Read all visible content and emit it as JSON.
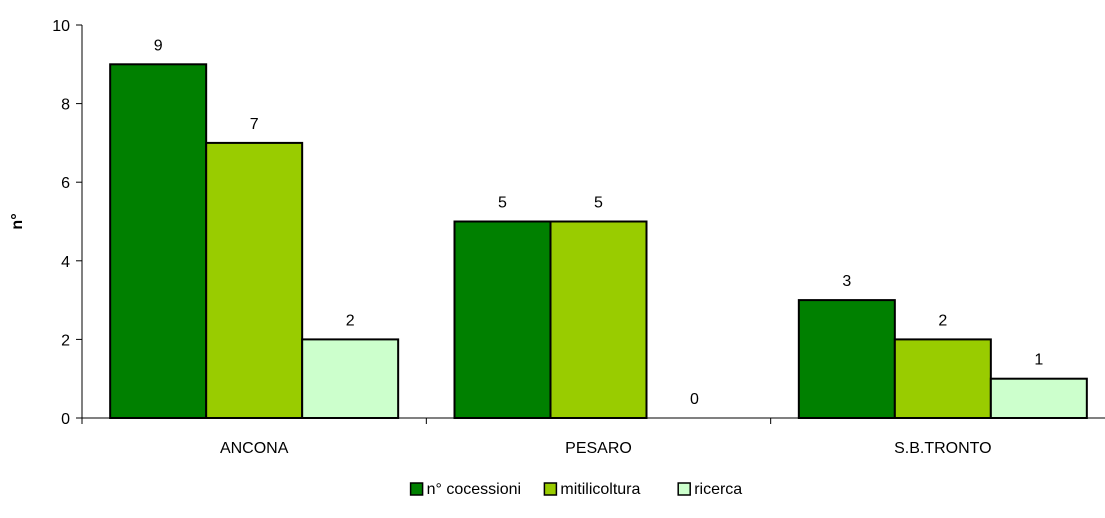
{
  "chart_data": {
    "type": "bar",
    "title": "",
    "xlabel": "",
    "ylabel": "n°",
    "categories": [
      "ANCONA",
      "PESARO",
      "S.B.TRONTO"
    ],
    "series": [
      {
        "name": "n° cocessioni",
        "color": "#008000",
        "values": [
          9,
          5,
          3
        ]
      },
      {
        "name": "mitilicoltura",
        "color": "#99CC00",
        "values": [
          7,
          5,
          2
        ]
      },
      {
        "name": "ricerca",
        "color": "#CCFFCC",
        "values": [
          2,
          0,
          1
        ]
      }
    ],
    "ylim": [
      0,
      10
    ],
    "yticks": [
      0,
      2,
      4,
      6,
      8,
      10
    ],
    "grid": false,
    "legend_position": "bottom",
    "data_labels": true
  }
}
